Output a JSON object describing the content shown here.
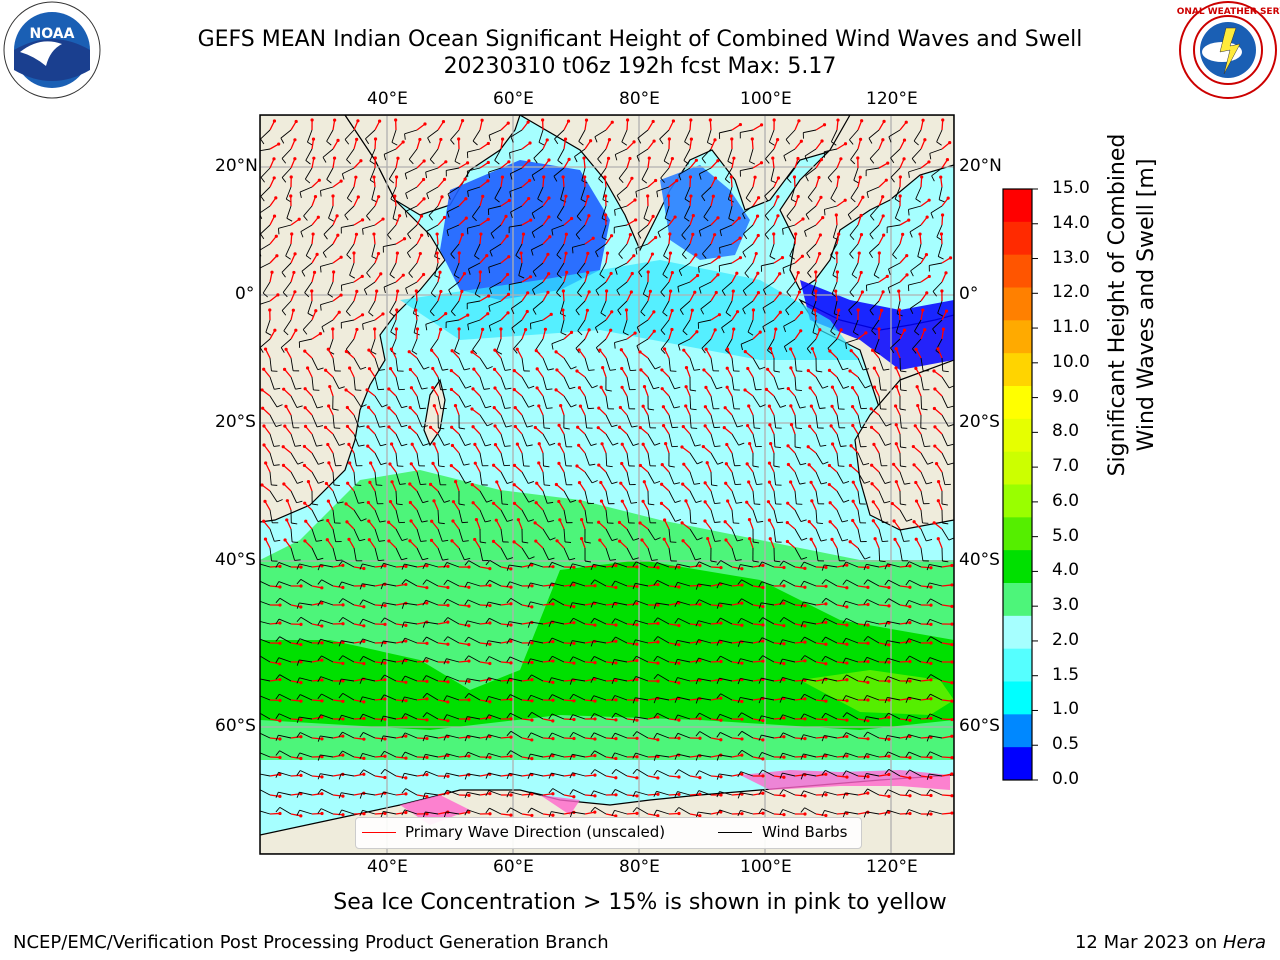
{
  "title": {
    "line1": "GEFS MEAN Indian Ocean Significant Height of Combined Wind Waves and Swell",
    "line2": "20230310 t06z 192h fcst   Max: 5.17"
  },
  "logos": {
    "left": {
      "icon": "noaa-logo-icon",
      "text": "NOAA"
    },
    "right": {
      "icon": "nws-logo-icon",
      "text": "NATIONAL WEATHER SERVICE"
    }
  },
  "map": {
    "lon_labels": [
      "40°E",
      "60°E",
      "80°E",
      "100°E",
      "120°E"
    ],
    "lat_labels": [
      "20°N",
      "0°",
      "20°S",
      "40°S",
      "60°S"
    ],
    "lon_range": [
      20,
      130
    ],
    "lat_range": [
      -75,
      28
    ],
    "gridlines": true
  },
  "colorbar": {
    "title_line1": "Significant Height of Combined",
    "title_line2": "Wind Waves and Swell [m]",
    "ticks": [
      "15.0",
      "14.0",
      "13.0",
      "12.0",
      "11.0",
      "10.0",
      "9.0",
      "8.0",
      "7.0",
      "6.0",
      "5.0",
      "4.0",
      "3.0",
      "2.0",
      "1.5",
      "1.0",
      "0.5",
      "0.0"
    ],
    "colors": [
      "#ff0000",
      "#ff2a00",
      "#ff5500",
      "#ff8000",
      "#ffaa00",
      "#ffd400",
      "#ffff00",
      "#e6ff00",
      "#ccff00",
      "#99ff00",
      "#55ee00",
      "#00e000",
      "#4df57a",
      "#a6ffff",
      "#55ffff",
      "#00ffff",
      "#0088ff",
      "#0000ff"
    ]
  },
  "legend": {
    "wave_label": "Primary Wave Direction (unscaled)",
    "wave_color": "#ff0000",
    "wind_label": "Wind Barbs",
    "wind_color": "#000000"
  },
  "ice_note": "Sea Ice Concentration > 15% is shown in pink to yellow",
  "footer": {
    "left": "NCEP/EMC/Verification Post Processing Product Generation Branch",
    "right_date": "12 Mar 2023 on ",
    "right_host": "Hera"
  },
  "colors": {
    "land": "#efecdc",
    "grid": "#b0b0b0"
  }
}
